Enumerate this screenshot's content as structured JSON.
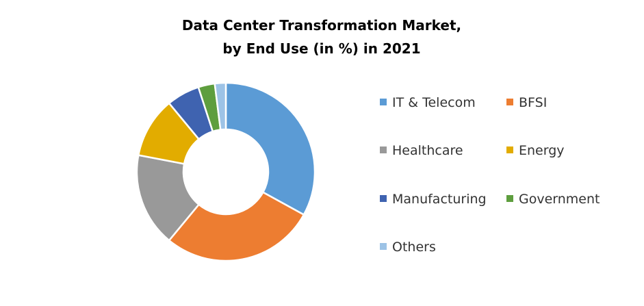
{
  "chart_data": {
    "type": "pie",
    "donut": true,
    "title": [
      "Data Center Transformation Market,",
      "by End Use (in %) in 2021"
    ],
    "categories": [
      "IT & Telecom",
      "BFSI",
      "Healthcare",
      "Energy",
      "Manufacturing",
      "Government",
      "Others"
    ],
    "values": [
      33,
      28,
      17,
      11,
      6,
      3,
      2
    ],
    "colors": [
      "#5B9BD5",
      "#ED7D31",
      "#A5A5A5",
      "#FFC000",
      "#4472C4",
      "#70AD47",
      "#9DC3E6"
    ],
    "legend_position": "right"
  }
}
